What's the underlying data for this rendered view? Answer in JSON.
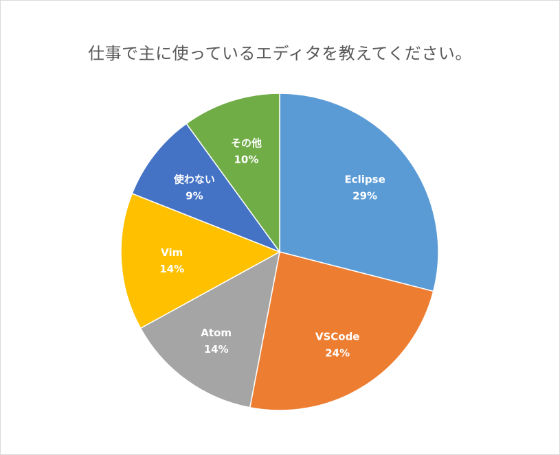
{
  "chart_data": {
    "type": "pie",
    "title": "仕事で主に使っているエディタを教えてください。",
    "slices": [
      {
        "label": "Eclipse",
        "value": 29,
        "percent_label": "29%",
        "color": "#5b9bd5"
      },
      {
        "label": "VSCode",
        "value": 24,
        "percent_label": "24%",
        "color": "#ed7d31"
      },
      {
        "label": "Atom",
        "value": 14,
        "percent_label": "14%",
        "color": "#a5a5a5"
      },
      {
        "label": "Vim",
        "value": 14,
        "percent_label": "14%",
        "color": "#ffc000"
      },
      {
        "label": "使わない",
        "value": 9,
        "percent_label": "9%",
        "color": "#4472c4"
      },
      {
        "label": "その他",
        "value": 10,
        "percent_label": "10%",
        "color": "#70ad47"
      }
    ],
    "start": "12 o'clock",
    "direction": "clockwise",
    "legend": "none",
    "data_labels": "inside, category name and percentage"
  }
}
